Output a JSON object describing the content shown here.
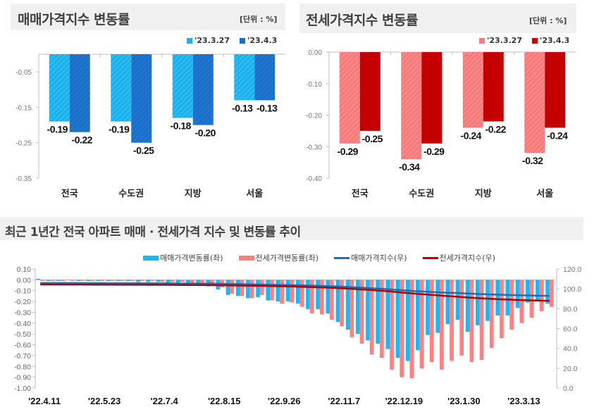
{
  "colors": {
    "sale_light": "#1ab2ee",
    "sale_dark": "#1a6fc9",
    "rent_light": "#f77a7a",
    "rent_dark": "#c40000",
    "sale_line": "#1f6db5",
    "rent_line": "#b00000"
  },
  "panels": {
    "sale": {
      "title": "매매가격지수 변동률",
      "unit": "[단위 : %]"
    },
    "rent": {
      "title": "전세가격지수 변동률",
      "unit": "[단위 : %]"
    },
    "trend": {
      "title": "최근 1년간 전국 아파트 매매 · 전세가격 지수 및 변동률 추이"
    }
  },
  "chart_data": [
    {
      "type": "bar",
      "categories": [
        "전국",
        "수도권",
        "지방",
        "서울"
      ],
      "series": [
        {
          "name": "'23.3.27",
          "values": [
            -0.19,
            -0.19,
            -0.18,
            -0.13
          ]
        },
        {
          "name": "'23.4.3",
          "values": [
            -0.22,
            -0.25,
            -0.2,
            -0.13
          ]
        }
      ],
      "ylim": [
        -0.35,
        0
      ],
      "yticks": [
        "-0.05",
        "-0.15",
        "-0.25",
        "-0.35"
      ],
      "ytick_values": [
        -0.05,
        -0.15,
        -0.25,
        -0.35
      ],
      "data_labels": true
    },
    {
      "type": "bar",
      "categories": [
        "전국",
        "수도권",
        "지방",
        "서울"
      ],
      "series": [
        {
          "name": "'23.3.27",
          "values": [
            -0.29,
            -0.34,
            -0.24,
            -0.32
          ]
        },
        {
          "name": "'23.4.3",
          "values": [
            -0.25,
            -0.29,
            -0.22,
            -0.24
          ]
        }
      ],
      "ylim": [
        -0.4,
        0
      ],
      "yticks": [
        "0.00",
        "-0.10",
        "-0.20",
        "-0.30",
        "-0.40"
      ],
      "ytick_values": [
        0,
        -0.1,
        -0.2,
        -0.3,
        -0.4
      ],
      "data_labels": true
    },
    {
      "type": "bar+line",
      "x_tick_labels": [
        "'22.4.11",
        "'22.5.23",
        "'22.7.4",
        "'22.8.15",
        "'22.9.26",
        "'22.11.7",
        "'22.12.19",
        "'23.1.30",
        "'23.3.13"
      ],
      "x_tick_every_weeks": 6,
      "left_yticks": [
        "0.10",
        "0.00",
        "-0.10",
        "-0.20",
        "-0.30",
        "-0.40",
        "-0.50",
        "-0.60",
        "-0.70",
        "-0.80",
        "-0.90",
        "-1.00"
      ],
      "left_ylim": [
        -1.0,
        0.1
      ],
      "right_yticks": [
        "120.0",
        "100.0",
        "80.0",
        "60.0",
        "40.0",
        "20.0",
        "0.0"
      ],
      "right_ylim": [
        0,
        120
      ],
      "series": [
        {
          "name": "매매가격변동률(좌)",
          "type": "bar",
          "axis": "left",
          "values": [
            0.01,
            -0.01,
            -0.01,
            0.0,
            -0.01,
            -0.01,
            -0.01,
            -0.01,
            -0.01,
            -0.01,
            -0.02,
            -0.02,
            -0.02,
            -0.03,
            -0.03,
            -0.04,
            -0.05,
            -0.06,
            -0.09,
            -0.14,
            -0.15,
            -0.17,
            -0.16,
            -0.19,
            -0.2,
            -0.2,
            -0.22,
            -0.27,
            -0.27,
            -0.31,
            -0.39,
            -0.46,
            -0.5,
            -0.56,
            -0.59,
            -0.64,
            -0.72,
            -0.75,
            -0.65,
            -0.51,
            -0.49,
            -0.41,
            -0.37,
            -0.48,
            -0.42,
            -0.38,
            -0.33,
            -0.33,
            -0.26,
            -0.21,
            -0.19,
            -0.22
          ]
        },
        {
          "name": "전세가격변동률(좌)",
          "type": "bar",
          "axis": "left",
          "values": [
            -0.01,
            -0.01,
            -0.01,
            -0.01,
            -0.01,
            -0.01,
            -0.01,
            -0.01,
            -0.01,
            -0.01,
            -0.01,
            -0.01,
            -0.02,
            -0.02,
            -0.02,
            -0.03,
            -0.04,
            -0.05,
            -0.07,
            -0.13,
            -0.15,
            -0.17,
            -0.14,
            -0.19,
            -0.22,
            -0.21,
            -0.25,
            -0.31,
            -0.32,
            -0.37,
            -0.43,
            -0.53,
            -0.59,
            -0.69,
            -0.72,
            -0.83,
            -0.9,
            -0.91,
            -0.82,
            -0.76,
            -0.83,
            -0.75,
            -0.7,
            -0.76,
            -0.74,
            -0.63,
            -0.54,
            -0.46,
            -0.4,
            -0.35,
            -0.29,
            -0.25
          ]
        },
        {
          "name": "매매가격지수(우)",
          "type": "line",
          "axis": "right",
          "values": [
            105.9,
            105.9,
            105.9,
            105.9,
            105.8,
            105.8,
            105.8,
            105.7,
            105.7,
            105.7,
            105.6,
            105.6,
            105.5,
            105.5,
            105.4,
            105.4,
            105.3,
            105.2,
            105.1,
            104.9,
            104.8,
            104.6,
            104.4,
            104.2,
            104.0,
            103.8,
            103.6,
            103.3,
            103.0,
            102.7,
            102.3,
            101.8,
            101.3,
            100.7,
            100.1,
            99.5,
            98.8,
            98.0,
            97.4,
            96.9,
            96.4,
            96.0,
            95.7,
            95.2,
            94.8,
            94.4,
            94.1,
            93.8,
            93.5,
            93.3,
            93.1,
            92.9
          ]
        },
        {
          "name": "전세가격지수(우)",
          "type": "line",
          "axis": "right",
          "values": [
            104.4,
            104.4,
            104.3,
            104.3,
            104.3,
            104.2,
            104.2,
            104.2,
            104.1,
            104.1,
            104.1,
            104.0,
            104.0,
            104.0,
            103.9,
            103.9,
            103.8,
            103.7,
            103.6,
            103.5,
            103.3,
            103.1,
            103.0,
            102.8,
            102.6,
            102.4,
            102.1,
            101.8,
            101.5,
            101.1,
            100.7,
            100.1,
            99.5,
            98.9,
            98.2,
            97.4,
            96.5,
            95.6,
            94.8,
            94.1,
            93.3,
            92.6,
            91.9,
            91.2,
            90.5,
            90.0,
            89.5,
            89.1,
            88.7,
            88.4,
            88.1,
            87.9
          ]
        }
      ],
      "legend": "top"
    }
  ]
}
